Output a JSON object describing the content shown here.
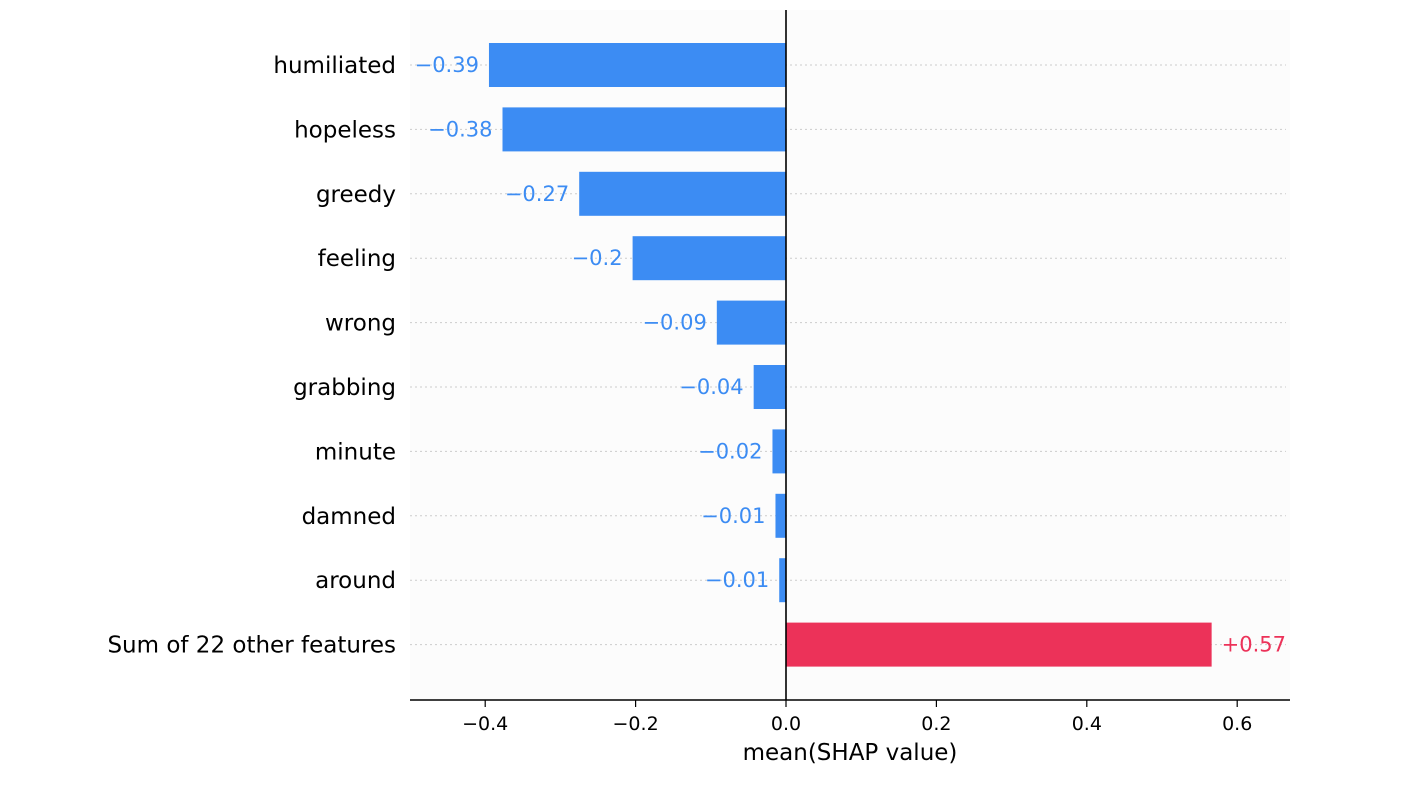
{
  "chart_data": {
    "type": "bar",
    "orientation": "horizontal",
    "categories": [
      "humiliated",
      "hopeless",
      "greedy",
      "feeling",
      "wrong",
      "grabbing",
      "minute",
      "damned",
      "around",
      "Sum of 22 other features"
    ],
    "values": [
      -0.395,
      -0.377,
      -0.275,
      -0.204,
      -0.092,
      -0.043,
      -0.018,
      -0.014,
      -0.009,
      0.566
    ],
    "value_labels": [
      "−0.39",
      "−0.38",
      "−0.27",
      "−0.2",
      "−0.09",
      "−0.04",
      "−0.02",
      "−0.01",
      "−0.01",
      "+0.57"
    ],
    "xlabel": "mean(SHAP value)",
    "xlim": [
      -0.5,
      0.667
    ],
    "xticks": [
      -0.4,
      -0.2,
      0.0,
      0.2,
      0.4,
      0.6
    ],
    "xtick_labels": [
      "−0.4",
      "−0.2",
      "0.0",
      "0.2",
      "0.4",
      "0.6"
    ],
    "grid": "horizontal dotted per feature",
    "colors": {
      "negative": "#3c8cf3",
      "positive": "#ec3259",
      "plot_background": "#fcfcfc",
      "axis": "#000000",
      "grid": "#cccccc"
    }
  }
}
